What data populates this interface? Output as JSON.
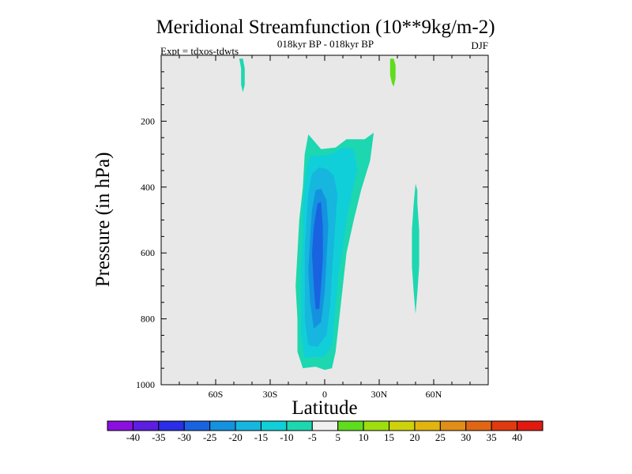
{
  "chart_data": {
    "type": "contour",
    "title": "Meridional Streamfunction (10**9kg/m-2)",
    "subtitle": "018kyr BP - 018kyr BP",
    "experiment_label": "Expt = tdxos-tdwts",
    "season": "DJF",
    "xlabel": "Latitude",
    "ylabel": "Pressure (in hPa)",
    "xlim": [
      -90,
      90
    ],
    "ylim": [
      1000,
      0
    ],
    "x_ticks": [
      {
        "value": -60,
        "label": "60S"
      },
      {
        "value": -30,
        "label": "30S"
      },
      {
        "value": 0,
        "label": "0"
      },
      {
        "value": 30,
        "label": "30N"
      },
      {
        "value": 60,
        "label": "60N"
      }
    ],
    "y_ticks": [
      {
        "value": 200,
        "label": "200"
      },
      {
        "value": 400,
        "label": "400"
      },
      {
        "value": 600,
        "label": "600"
      },
      {
        "value": 800,
        "label": "800"
      },
      {
        "value": 1000,
        "label": "1000"
      }
    ],
    "colorbar": {
      "levels": [
        "-40",
        "-35",
        "-30",
        "-25",
        "-20",
        "-15",
        "-10",
        "-5",
        "5",
        "10",
        "15",
        "20",
        "25",
        "30",
        "35",
        "40"
      ],
      "colors": [
        "#8a10e0",
        "#5c1ee0",
        "#2a2ee6",
        "#1a63e0",
        "#1492e0",
        "#16b6de",
        "#10cfd8",
        "#1dd7b0",
        "#f0f0f0",
        "#5fdc1e",
        "#9ede10",
        "#cdd20c",
        "#e2b410",
        "#e08e18",
        "#e06614",
        "#e03a10",
        "#e01a10"
      ]
    },
    "regions": [
      {
        "value": "-5 to -10",
        "color": "#1dd7b0",
        "outline": [
          [
            -12,
            950
          ],
          [
            -15,
            900
          ],
          [
            -15,
            800
          ],
          [
            -16,
            700
          ],
          [
            -15,
            600
          ],
          [
            -14,
            500
          ],
          [
            -12,
            400
          ],
          [
            -11,
            300
          ],
          [
            -9,
            240
          ],
          [
            -2,
            285
          ],
          [
            6,
            280
          ],
          [
            12,
            255
          ],
          [
            18,
            255
          ],
          [
            22,
            255
          ],
          [
            27,
            235
          ],
          [
            25,
            320
          ],
          [
            20,
            410
          ],
          [
            16,
            500
          ],
          [
            12,
            600
          ],
          [
            10,
            700
          ],
          [
            8,
            800
          ],
          [
            6,
            900
          ],
          [
            4,
            950
          ],
          [
            0,
            955
          ],
          [
            -5,
            945
          ]
        ]
      },
      {
        "value": "-10 to -15",
        "color": "#10cfd8",
        "outline": [
          [
            -11,
            920
          ],
          [
            -13,
            850
          ],
          [
            -13,
            750
          ],
          [
            -13,
            650
          ],
          [
            -12,
            550
          ],
          [
            -12,
            450
          ],
          [
            -10,
            350
          ],
          [
            -8,
            305
          ],
          [
            -3,
            305
          ],
          [
            4,
            300
          ],
          [
            10,
            280
          ],
          [
            16,
            285
          ],
          [
            18,
            345
          ],
          [
            15,
            420
          ],
          [
            12,
            500
          ],
          [
            10,
            580
          ],
          [
            8,
            650
          ],
          [
            6,
            760
          ],
          [
            4,
            880
          ],
          [
            0,
            915
          ],
          [
            -6,
            915
          ]
        ]
      },
      {
        "value": "-15 to -20",
        "color": "#16b6de",
        "outline": [
          [
            -9,
            880
          ],
          [
            -11,
            800
          ],
          [
            -11,
            700
          ],
          [
            -11,
            600
          ],
          [
            -10,
            500
          ],
          [
            -9,
            420
          ],
          [
            -7,
            360
          ],
          [
            -3,
            340
          ],
          [
            1,
            345
          ],
          [
            5,
            365
          ],
          [
            7,
            420
          ],
          [
            6,
            500
          ],
          [
            5,
            580
          ],
          [
            4,
            660
          ],
          [
            3,
            760
          ],
          [
            1,
            850
          ],
          [
            -4,
            885
          ]
        ]
      },
      {
        "value": "-20 to -25",
        "color": "#1492e0",
        "outline": [
          [
            -6,
            830
          ],
          [
            -8,
            750
          ],
          [
            -9,
            650
          ],
          [
            -8,
            550
          ],
          [
            -7,
            470
          ],
          [
            -5,
            410
          ],
          [
            -2,
            405
          ],
          [
            1,
            440
          ],
          [
            2,
            520
          ],
          [
            1,
            620
          ],
          [
            0,
            720
          ],
          [
            -2,
            810
          ]
        ]
      },
      {
        "value": "-25 to -30",
        "color": "#1a63e0",
        "outline": [
          [
            -5,
            770
          ],
          [
            -6,
            700
          ],
          [
            -7,
            600
          ],
          [
            -6,
            520
          ],
          [
            -4,
            450
          ],
          [
            -2,
            445
          ],
          [
            -1,
            520
          ],
          [
            -1,
            620
          ],
          [
            -2,
            700
          ],
          [
            -3,
            770
          ]
        ]
      },
      {
        "value": "-5 to -10",
        "color": "#1dd7b0",
        "outline": [
          [
            -47,
            10
          ],
          [
            -46,
            40
          ],
          [
            -46,
            90
          ],
          [
            -45,
            112
          ],
          [
            -44,
            90
          ],
          [
            -44,
            40
          ],
          [
            -45,
            10
          ]
        ]
      },
      {
        "value": "5 to 10",
        "color": "#5fdc1e",
        "outline": [
          [
            36,
            10
          ],
          [
            36,
            60
          ],
          [
            37,
            85
          ],
          [
            38,
            95
          ],
          [
            39,
            70
          ],
          [
            39,
            30
          ],
          [
            38,
            10
          ]
        ]
      },
      {
        "value": "-5 to -10",
        "color": "#1dd7b0",
        "outline": [
          [
            50,
            390
          ],
          [
            49,
            450
          ],
          [
            48,
            530
          ],
          [
            48,
            640
          ],
          [
            49,
            720
          ],
          [
            50,
            785
          ],
          [
            51,
            720
          ],
          [
            52,
            640
          ],
          [
            52,
            530
          ],
          [
            51,
            450
          ],
          [
            51,
            410
          ]
        ]
      }
    ]
  }
}
